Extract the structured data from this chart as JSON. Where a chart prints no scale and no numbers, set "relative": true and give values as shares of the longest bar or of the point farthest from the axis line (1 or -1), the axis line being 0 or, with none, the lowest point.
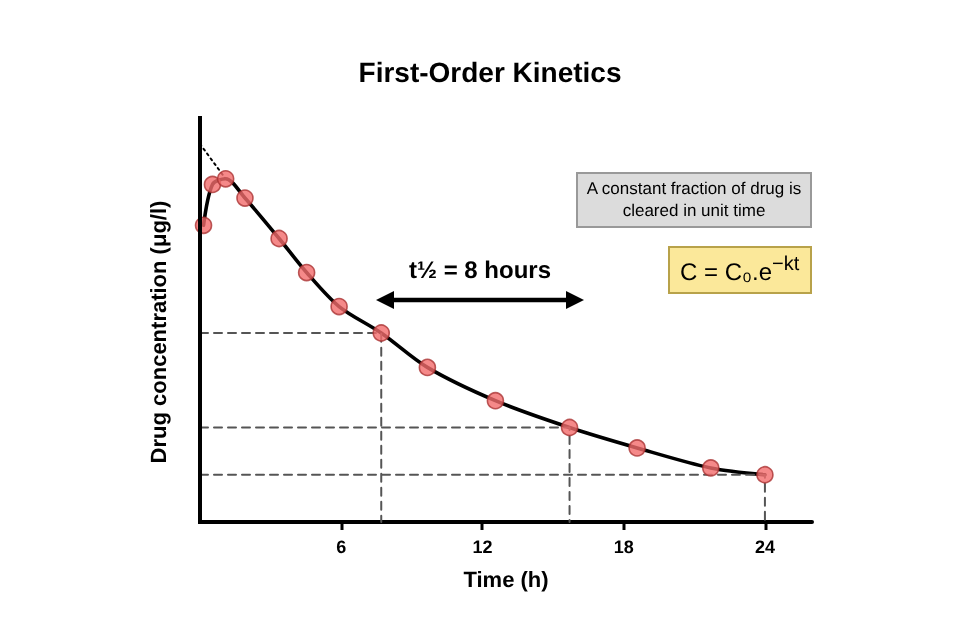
{
  "chart_data": {
    "type": "line",
    "title": "First-Order Kinetics",
    "xlabel": "Time (h)",
    "ylabel": "Drug concentration (μg/l)",
    "relative": true,
    "xlim": [
      0,
      26
    ],
    "xticks": [
      6,
      12,
      18,
      24
    ],
    "annotations": [
      "t½ = 8 hours",
      "A constant fraction of drug is cleared in unit time",
      "C = C₀.e$^{−kt}$"
    ],
    "series": [
      {
        "type": "line",
        "color": "#000000",
        "marker": "none",
        "line_style": "solid",
        "x": [
          0.15,
          0.53,
          1.09,
          1.91,
          3.36,
          4.53,
          5.91,
          7.7,
          9.66,
          12.55,
          15.7,
          18.57,
          21.7,
          24
        ],
        "values": [
          0.785,
          0.893,
          0.908,
          0.857,
          0.75,
          0.66,
          0.57,
          0.5,
          0.409,
          0.321,
          0.25,
          0.196,
          0.143,
          0.125
        ]
      },
      {
        "type": "scatter",
        "color": "#f26b6b",
        "marker": "circle",
        "x": [
          0.15,
          0.53,
          1.09,
          1.91,
          3.36,
          4.53,
          5.91,
          7.7,
          9.66,
          12.55,
          15.7,
          18.57,
          21.7,
          24
        ],
        "values": [
          0.785,
          0.893,
          0.908,
          0.857,
          0.75,
          0.66,
          0.57,
          0.5,
          0.409,
          0.321,
          0.25,
          0.196,
          0.143,
          0.125
        ]
      },
      {
        "type": "line",
        "color": "#000000",
        "marker": "none",
        "line_style": "dotted",
        "x": [
          0,
          1.09
        ],
        "values": [
          1,
          0.908
        ]
      },
      {
        "type": "line",
        "color": "#555555",
        "marker": "none",
        "line_style": "dashed",
        "x": [
          0,
          7.7,
          7.7
        ],
        "values": [
          0.5,
          0.5,
          0
        ]
      },
      {
        "type": "line",
        "color": "#555555",
        "marker": "none",
        "line_style": "dashed",
        "x": [
          0,
          15.7,
          15.7
        ],
        "values": [
          0.25,
          0.25,
          0
        ]
      },
      {
        "type": "line",
        "color": "#555555",
        "marker": "none",
        "line_style": "dashed",
        "x": [
          0,
          24,
          24
        ],
        "values": [
          0.125,
          0.125,
          0
        ]
      }
    ],
    "grid": false
  }
}
